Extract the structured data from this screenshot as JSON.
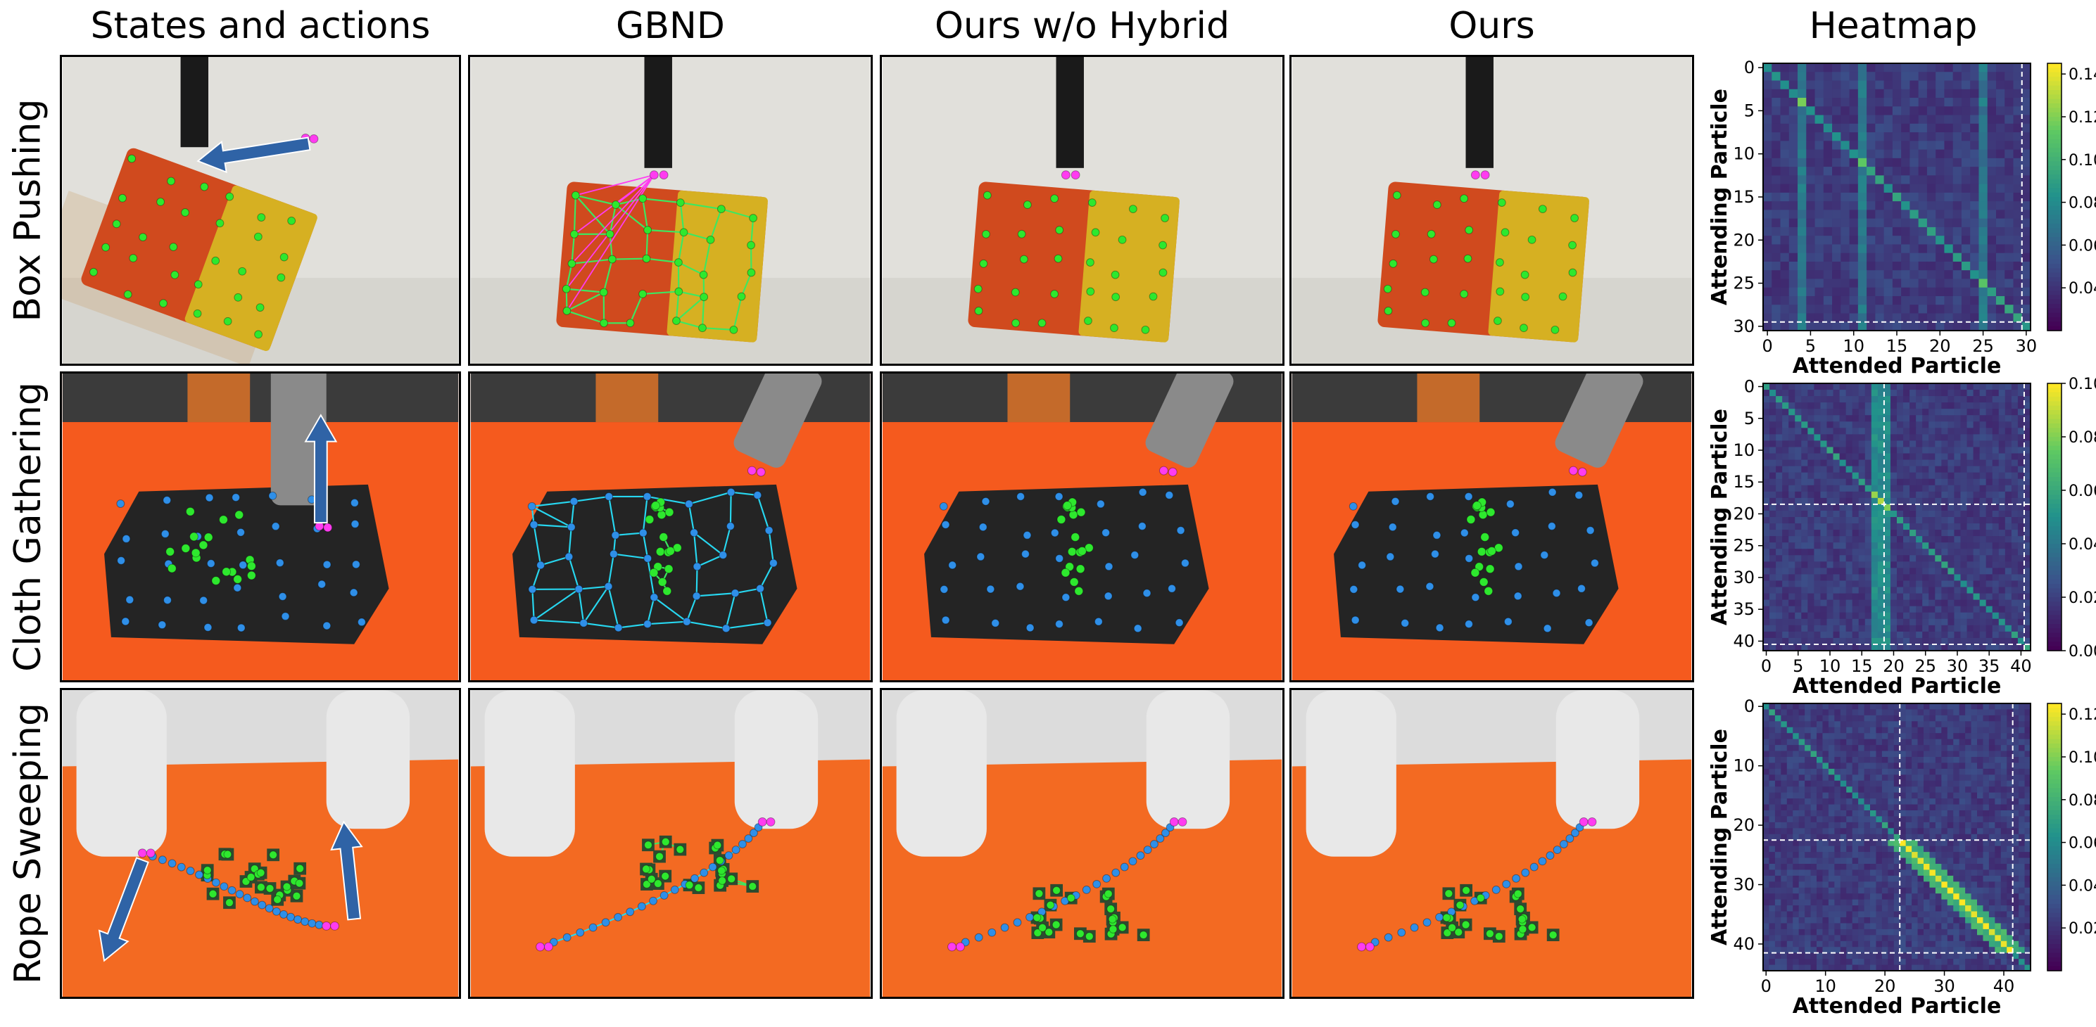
{
  "columns": [
    "States and actions",
    "GBND",
    "Ours w/o Hybrid",
    "Ours",
    "Heatmap"
  ],
  "rows": [
    "Box Pushing",
    "Cloth Gathering",
    "Rope Sweeping"
  ],
  "heatmaps": [
    {
      "xlabel": "Attended Particle",
      "ylabel": "Attending Particle",
      "xticks": [
        "0",
        "5",
        "10",
        "15",
        "20",
        "25",
        "30"
      ],
      "yticks": [
        "0",
        "5",
        "10",
        "15",
        "20",
        "25",
        "30"
      ],
      "colorbar_ticks": [
        "0.14",
        "0.12",
        "0.10",
        "0.08",
        "0.06",
        "0.04"
      ],
      "range": [
        0,
        31
      ],
      "clim": [
        0.02,
        0.145
      ],
      "dividers": [
        29.5
      ]
    },
    {
      "xlabel": "Attended Particle",
      "ylabel": "Attending Particle",
      "xticks": [
        "0",
        "5",
        "10",
        "15",
        "20",
        "25",
        "30",
        "35",
        "40"
      ],
      "yticks": [
        "0",
        "5",
        "10",
        "15",
        "20",
        "25",
        "30",
        "35",
        "40"
      ],
      "colorbar_ticks": [
        "0.10",
        "0.08",
        "0.06",
        "0.04",
        "0.02",
        "0.00"
      ],
      "range": [
        0,
        42
      ],
      "clim": [
        0.0,
        0.1
      ],
      "dividers": [
        18.5,
        40.5
      ]
    },
    {
      "xlabel": "Attended Particle",
      "ylabel": "Attending Particle",
      "xticks": [
        "0",
        "10",
        "20",
        "30",
        "40"
      ],
      "yticks": [
        "0",
        "10",
        "20",
        "30",
        "40"
      ],
      "colorbar_ticks": [
        "0.12",
        "0.10",
        "0.08",
        "0.06",
        "0.04",
        "0.02"
      ],
      "range": [
        0,
        45
      ],
      "clim": [
        0.0,
        0.125
      ],
      "dividers": [
        22.5,
        41.5
      ]
    }
  ],
  "colors": {
    "object_particle": "#2ee82e",
    "cloth_particle": "#2f8fe8",
    "end_effector": "#ff3cf0",
    "edge_green": "#3ce860",
    "edge_cyan": "#27d7f0",
    "action_arrow": "#2f63a6",
    "box_bg": "#e1e0db",
    "cloth_bg": "#f55a1e",
    "rope_bg": "#f36a22"
  }
}
